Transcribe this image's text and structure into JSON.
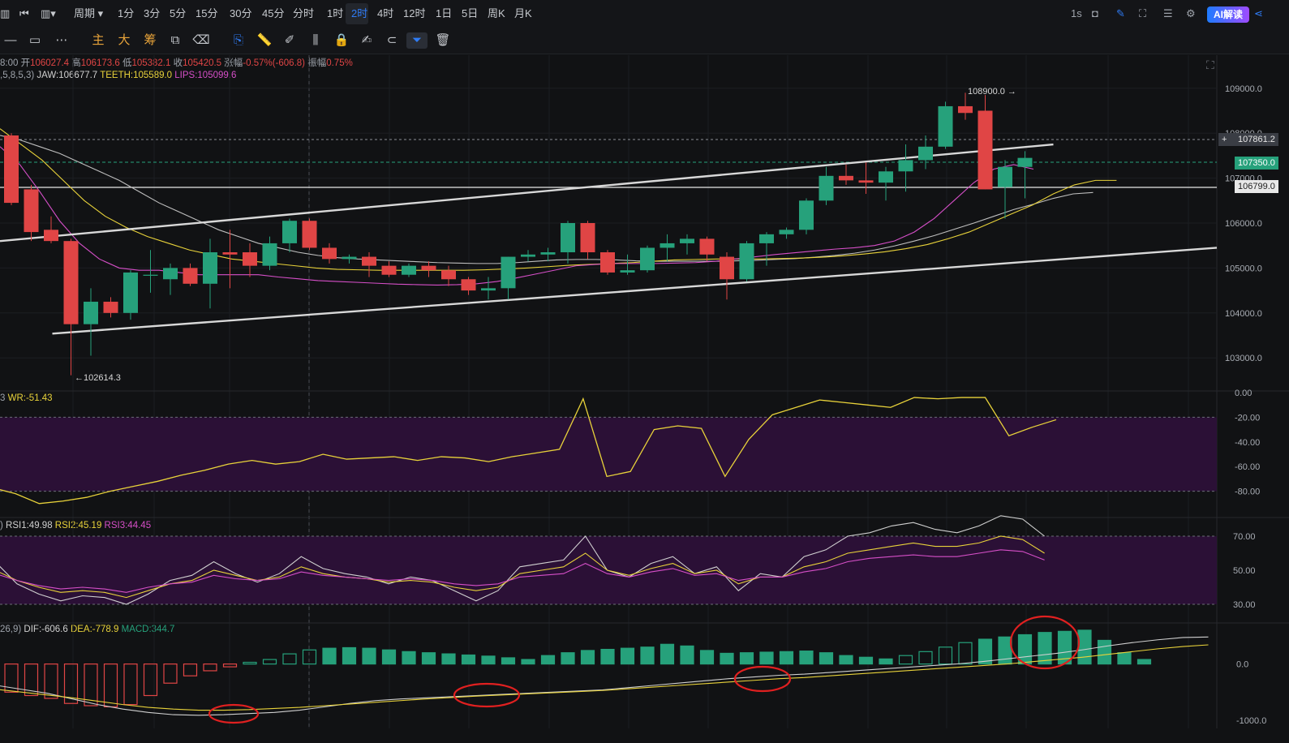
{
  "topbar": {
    "timeframes": [
      "周期",
      "1分",
      "3分",
      "5分",
      "15分",
      "30分",
      "45分",
      "分时",
      "1时",
      "2时",
      "4时",
      "12时",
      "1日",
      "5日",
      "周K",
      "月K"
    ],
    "active_timeframe": "2时",
    "refresh": "1s",
    "ai_button": "AI解读"
  },
  "toolbar": {
    "main_label": "主",
    "big_label": "大",
    "chip_label": "筹"
  },
  "main_panel": {
    "info_line": {
      "time_prefix": "8:00",
      "open_label": "开",
      "open": "106027.4",
      "high_label": "高",
      "high": "106173.6",
      "low_label": "低",
      "low": "105382.1",
      "close_label": "收",
      "close": "105420.5",
      "change_label": "涨幅",
      "change": "-0.57%(-606.8)",
      "amplitude_label": "振幅",
      "amplitude": "0.75%"
    },
    "indicator_line": {
      "params": ",5,8,5,3)",
      "jaw": "JAW:106677.7",
      "teeth": "TEETH:105589.0",
      "lips": "LIPS:105099.6"
    },
    "high_marker": "108900.0 →",
    "low_marker": "←102614.3",
    "price_tags": {
      "crosshair": "107861.2",
      "last": "107350.0",
      "line": "106799.0"
    },
    "colors": {
      "up": "#26a17b",
      "down": "#e04545",
      "jaw": "#bfbfbf",
      "teeth": "#e8d23a",
      "lips": "#d64fc8"
    }
  },
  "wr_panel": {
    "label_prefix": "3",
    "wr": "WR:-51.43"
  },
  "rsi_panel": {
    "label_prefix": ")",
    "rsi1": "RSI1:49.98",
    "rsi2": "RSI2:45.19",
    "rsi3": "RSI3:44.45"
  },
  "macd_panel": {
    "label_prefix": "26,9)",
    "dif": "DIF:-606.6",
    "dea": "DEA:-778.9",
    "macd": "MACD:344.7"
  },
  "chart_data": {
    "type": "candlestick",
    "y_axis_main": {
      "ticks": [
        "109000.0",
        "108000.0",
        "107000.0",
        "106000.0",
        "105000.0",
        "104000.0",
        "103000.0"
      ],
      "ylim": [
        102300,
        109700
      ]
    },
    "candles": [
      {
        "o": 107950,
        "h": 108000,
        "l": 106400,
        "c": 106450
      },
      {
        "o": 106750,
        "h": 106850,
        "l": 105600,
        "c": 105800
      },
      {
        "o": 105850,
        "h": 106150,
        "l": 105550,
        "c": 105600
      },
      {
        "o": 105600,
        "h": 105650,
        "l": 102614,
        "c": 103750
      },
      {
        "o": 103750,
        "h": 104550,
        "l": 103050,
        "c": 104250
      },
      {
        "o": 104250,
        "h": 104350,
        "l": 103900,
        "c": 104000
      },
      {
        "o": 104000,
        "h": 104950,
        "l": 103850,
        "c": 104900
      },
      {
        "o": 104850,
        "h": 105400,
        "l": 104450,
        "c": 104850
      },
      {
        "o": 104750,
        "h": 105100,
        "l": 104400,
        "c": 105000
      },
      {
        "o": 105000,
        "h": 105100,
        "l": 104600,
        "c": 104650
      },
      {
        "o": 104650,
        "h": 105650,
        "l": 104100,
        "c": 105350
      },
      {
        "o": 105350,
        "h": 105850,
        "l": 104550,
        "c": 105300
      },
      {
        "o": 105350,
        "h": 105550,
        "l": 104800,
        "c": 105050
      },
      {
        "o": 105050,
        "h": 105700,
        "l": 104950,
        "c": 105550
      },
      {
        "o": 105550,
        "h": 106100,
        "l": 105350,
        "c": 106050
      },
      {
        "o": 106050,
        "h": 106100,
        "l": 105400,
        "c": 105450
      },
      {
        "o": 105450,
        "h": 105550,
        "l": 105100,
        "c": 105200
      },
      {
        "o": 105200,
        "h": 105300,
        "l": 105100,
        "c": 105250
      },
      {
        "o": 105250,
        "h": 105350,
        "l": 104800,
        "c": 105050
      },
      {
        "o": 105050,
        "h": 105150,
        "l": 104800,
        "c": 104850
      },
      {
        "o": 104850,
        "h": 105100,
        "l": 104800,
        "c": 105050
      },
      {
        "o": 105050,
        "h": 105150,
        "l": 104800,
        "c": 104950
      },
      {
        "o": 104950,
        "h": 105050,
        "l": 104600,
        "c": 104750
      },
      {
        "o": 104750,
        "h": 104800,
        "l": 104400,
        "c": 104500
      },
      {
        "o": 104500,
        "h": 104800,
        "l": 104300,
        "c": 104550
      },
      {
        "o": 104550,
        "h": 105250,
        "l": 104300,
        "c": 105250
      },
      {
        "o": 105250,
        "h": 105400,
        "l": 105150,
        "c": 105300
      },
      {
        "o": 105300,
        "h": 105450,
        "l": 105150,
        "c": 105350
      },
      {
        "o": 105350,
        "h": 106050,
        "l": 105100,
        "c": 106000
      },
      {
        "o": 106000,
        "h": 106050,
        "l": 105200,
        "c": 105350
      },
      {
        "o": 105350,
        "h": 105400,
        "l": 104850,
        "c": 104900
      },
      {
        "o": 104900,
        "h": 105300,
        "l": 104850,
        "c": 104950
      },
      {
        "o": 104950,
        "h": 105500,
        "l": 104900,
        "c": 105450
      },
      {
        "o": 105450,
        "h": 105750,
        "l": 105150,
        "c": 105550
      },
      {
        "o": 105550,
        "h": 105750,
        "l": 105300,
        "c": 105650
      },
      {
        "o": 105650,
        "h": 105700,
        "l": 105150,
        "c": 105300
      },
      {
        "o": 105250,
        "h": 105350,
        "l": 104300,
        "c": 104750
      },
      {
        "o": 104750,
        "h": 105600,
        "l": 104700,
        "c": 105550
      },
      {
        "o": 105550,
        "h": 105800,
        "l": 105050,
        "c": 105750
      },
      {
        "o": 105750,
        "h": 105900,
        "l": 105650,
        "c": 105850
      },
      {
        "o": 105850,
        "h": 106550,
        "l": 105750,
        "c": 106500
      },
      {
        "o": 106500,
        "h": 107250,
        "l": 106400,
        "c": 107050
      },
      {
        "o": 107050,
        "h": 107300,
        "l": 106850,
        "c": 106950
      },
      {
        "o": 106950,
        "h": 107350,
        "l": 106650,
        "c": 106900
      },
      {
        "o": 106900,
        "h": 107250,
        "l": 106500,
        "c": 107150
      },
      {
        "o": 107150,
        "h": 107750,
        "l": 106700,
        "c": 107400
      },
      {
        "o": 107400,
        "h": 107950,
        "l": 107200,
        "c": 107700
      },
      {
        "o": 107700,
        "h": 108700,
        "l": 107650,
        "c": 108600
      },
      {
        "o": 108600,
        "h": 108900,
        "l": 108300,
        "c": 108450
      },
      {
        "o": 108500,
        "h": 108850,
        "l": 106750,
        "c": 106750
      },
      {
        "o": 106800,
        "h": 107400,
        "l": 106100,
        "c": 107250
      },
      {
        "o": 107250,
        "h": 107600,
        "l": 106550,
        "c": 107450
      }
    ],
    "jaw": [
      107950,
      107850,
      107700,
      107550,
      107350,
      107150,
      106950,
      106700,
      106450,
      106250,
      106050,
      105850,
      105700,
      105550,
      105450,
      105350,
      105280,
      105230,
      105200,
      105180,
      105160,
      105140,
      105120,
      105110,
      105100,
      105100,
      105120,
      105150,
      105180,
      105190,
      105190,
      105180,
      105160,
      105150,
      105150,
      105150,
      105150,
      105160,
      105170,
      105190,
      105210,
      105240,
      105280,
      105330,
      105400,
      105490,
      105600,
      105720,
      105860,
      106000,
      106150,
      106300,
      106420,
      106550,
      106650,
      106680
    ],
    "teeth": [
      108100,
      107750,
      107400,
      106950,
      106500,
      106150,
      105900,
      105700,
      105550,
      105400,
      105300,
      105200,
      105150,
      105100,
      105050,
      105000,
      104970,
      104960,
      104950,
      104950,
      104950,
      104950,
      104950,
      104960,
      104980,
      105000,
      105030,
      105060,
      105080,
      105100,
      105120,
      105150,
      105180,
      105190,
      105200,
      105200,
      105200,
      105210,
      105220,
      105240,
      105270,
      105310,
      105360,
      105430,
      105520,
      105650,
      105800,
      106000,
      106200,
      106400,
      106650,
      106850,
      106950,
      106950
    ],
    "lips": [
      107700,
      107300,
      106700,
      106050,
      105550,
      105200,
      105000,
      104950,
      104950,
      104900,
      104850,
      104850,
      104850,
      104850,
      104800,
      104760,
      104720,
      104700,
      104680,
      104660,
      104640,
      104630,
      104620,
      104630,
      104650,
      104700,
      104780,
      104870,
      104960,
      105050,
      105080,
      105100,
      105100,
      105100,
      105110,
      105120,
      105150,
      105200,
      105250,
      105300,
      105340,
      105380,
      105420,
      105450,
      105500,
      105600,
      105800,
      106100,
      106500,
      106900,
      107200,
      107300,
      107200
    ],
    "channel_upper": {
      "from": [
        0,
        105600
      ],
      "to": [
        53,
        107750
      ]
    },
    "channel_lower": {
      "from": [
        1,
        103540
      ],
      "to": [
        61,
        105450
      ]
    },
    "wr": {
      "ticks": [
        "0.00",
        "-20.00",
        "-40.00",
        "-60.00",
        "-80.00"
      ],
      "values": [
        -77,
        -82,
        -90,
        -88,
        -85,
        -80,
        -76,
        -72,
        -67,
        -63,
        -58,
        -55,
        -58,
        -56,
        -50,
        -54,
        -53,
        -52,
        -55,
        -52,
        -53,
        -56,
        -52,
        -49,
        -46,
        -5,
        -68,
        -64,
        -30,
        -27,
        -29,
        -68,
        -38,
        -18,
        -12,
        -6,
        -8,
        -10,
        -12,
        -4,
        -5,
        -4,
        -4,
        -35,
        -28,
        -22
      ],
      "ylim": [
        -100,
        0
      ]
    },
    "rsi": {
      "ticks": [
        "70.00",
        "50.00",
        "30.00"
      ],
      "rsi1": [
        55,
        42,
        36,
        32,
        35,
        34,
        30,
        36,
        44,
        47,
        55,
        48,
        43,
        48,
        58,
        51,
        48,
        46,
        42,
        46,
        44,
        38,
        32,
        38,
        52,
        54,
        56,
        70,
        50,
        46,
        54,
        58,
        48,
        52,
        38,
        48,
        46,
        58,
        62,
        70,
        72,
        76,
        78,
        74,
        72,
        76,
        82,
        80,
        70
      ],
      "rsi2": [
        50,
        44,
        40,
        37,
        38,
        37,
        34,
        38,
        42,
        44,
        50,
        47,
        44,
        46,
        52,
        48,
        46,
        45,
        43,
        44,
        43,
        40,
        38,
        40,
        48,
        50,
        52,
        60,
        50,
        47,
        51,
        54,
        48,
        50,
        42,
        46,
        46,
        52,
        55,
        60,
        62,
        64,
        66,
        64,
        64,
        66,
        70,
        68,
        60
      ],
      "rsi3": [
        48,
        44,
        41,
        39,
        40,
        39,
        37,
        40,
        42,
        43,
        47,
        45,
        44,
        45,
        49,
        47,
        46,
        45,
        44,
        45,
        44,
        42,
        41,
        42,
        46,
        47,
        48,
        54,
        48,
        46,
        49,
        51,
        47,
        48,
        44,
        46,
        46,
        49,
        51,
        55,
        57,
        58,
        59,
        58,
        58,
        60,
        62,
        61,
        56
      ],
      "ylim": [
        20,
        80
      ]
    },
    "macd": {
      "ticks": [
        "0.0",
        "-1000.0"
      ],
      "bars": [
        -500,
        -560,
        -610,
        -700,
        -740,
        -760,
        -720,
        -560,
        -340,
        -210,
        -120,
        -50,
        30,
        80,
        180,
        250,
        280,
        290,
        280,
        250,
        220,
        200,
        180,
        160,
        140,
        110,
        80,
        150,
        200,
        240,
        260,
        280,
        300,
        350,
        320,
        240,
        190,
        200,
        210,
        220,
        230,
        200,
        150,
        120,
        90,
        150,
        220,
        300,
        380,
        440,
        480,
        520,
        560,
        580,
        600,
        420,
        200,
        80
      ],
      "dif": [
        -380,
        -450,
        -520,
        -620,
        -720,
        -800,
        -860,
        -900,
        -910,
        -900,
        -880,
        -860,
        -820,
        -760,
        -700,
        -650,
        -620,
        -600,
        -580,
        -560,
        -540,
        -520,
        -500,
        -480,
        -460,
        -420,
        -380,
        -340,
        -300,
        -260,
        -230,
        -200,
        -180,
        -150,
        -120,
        -90,
        -60,
        -30,
        0,
        40,
        90,
        140,
        190,
        250,
        320,
        380,
        430,
        470,
        480,
        450,
        400
      ],
      "dea": [
        -450,
        -500,
        -550,
        -600,
        -660,
        -720,
        -770,
        -800,
        -820,
        -820,
        -810,
        -790,
        -770,
        -740,
        -710,
        -680,
        -650,
        -620,
        -595,
        -570,
        -550,
        -530,
        -510,
        -490,
        -470,
        -440,
        -410,
        -380,
        -350,
        -320,
        -290,
        -260,
        -240,
        -210,
        -180,
        -150,
        -120,
        -90,
        -60,
        -30,
        0,
        40,
        80,
        120,
        170,
        220,
        270,
        310,
        340,
        350,
        355
      ],
      "ylim": [
        -1100,
        700
      ]
    }
  }
}
